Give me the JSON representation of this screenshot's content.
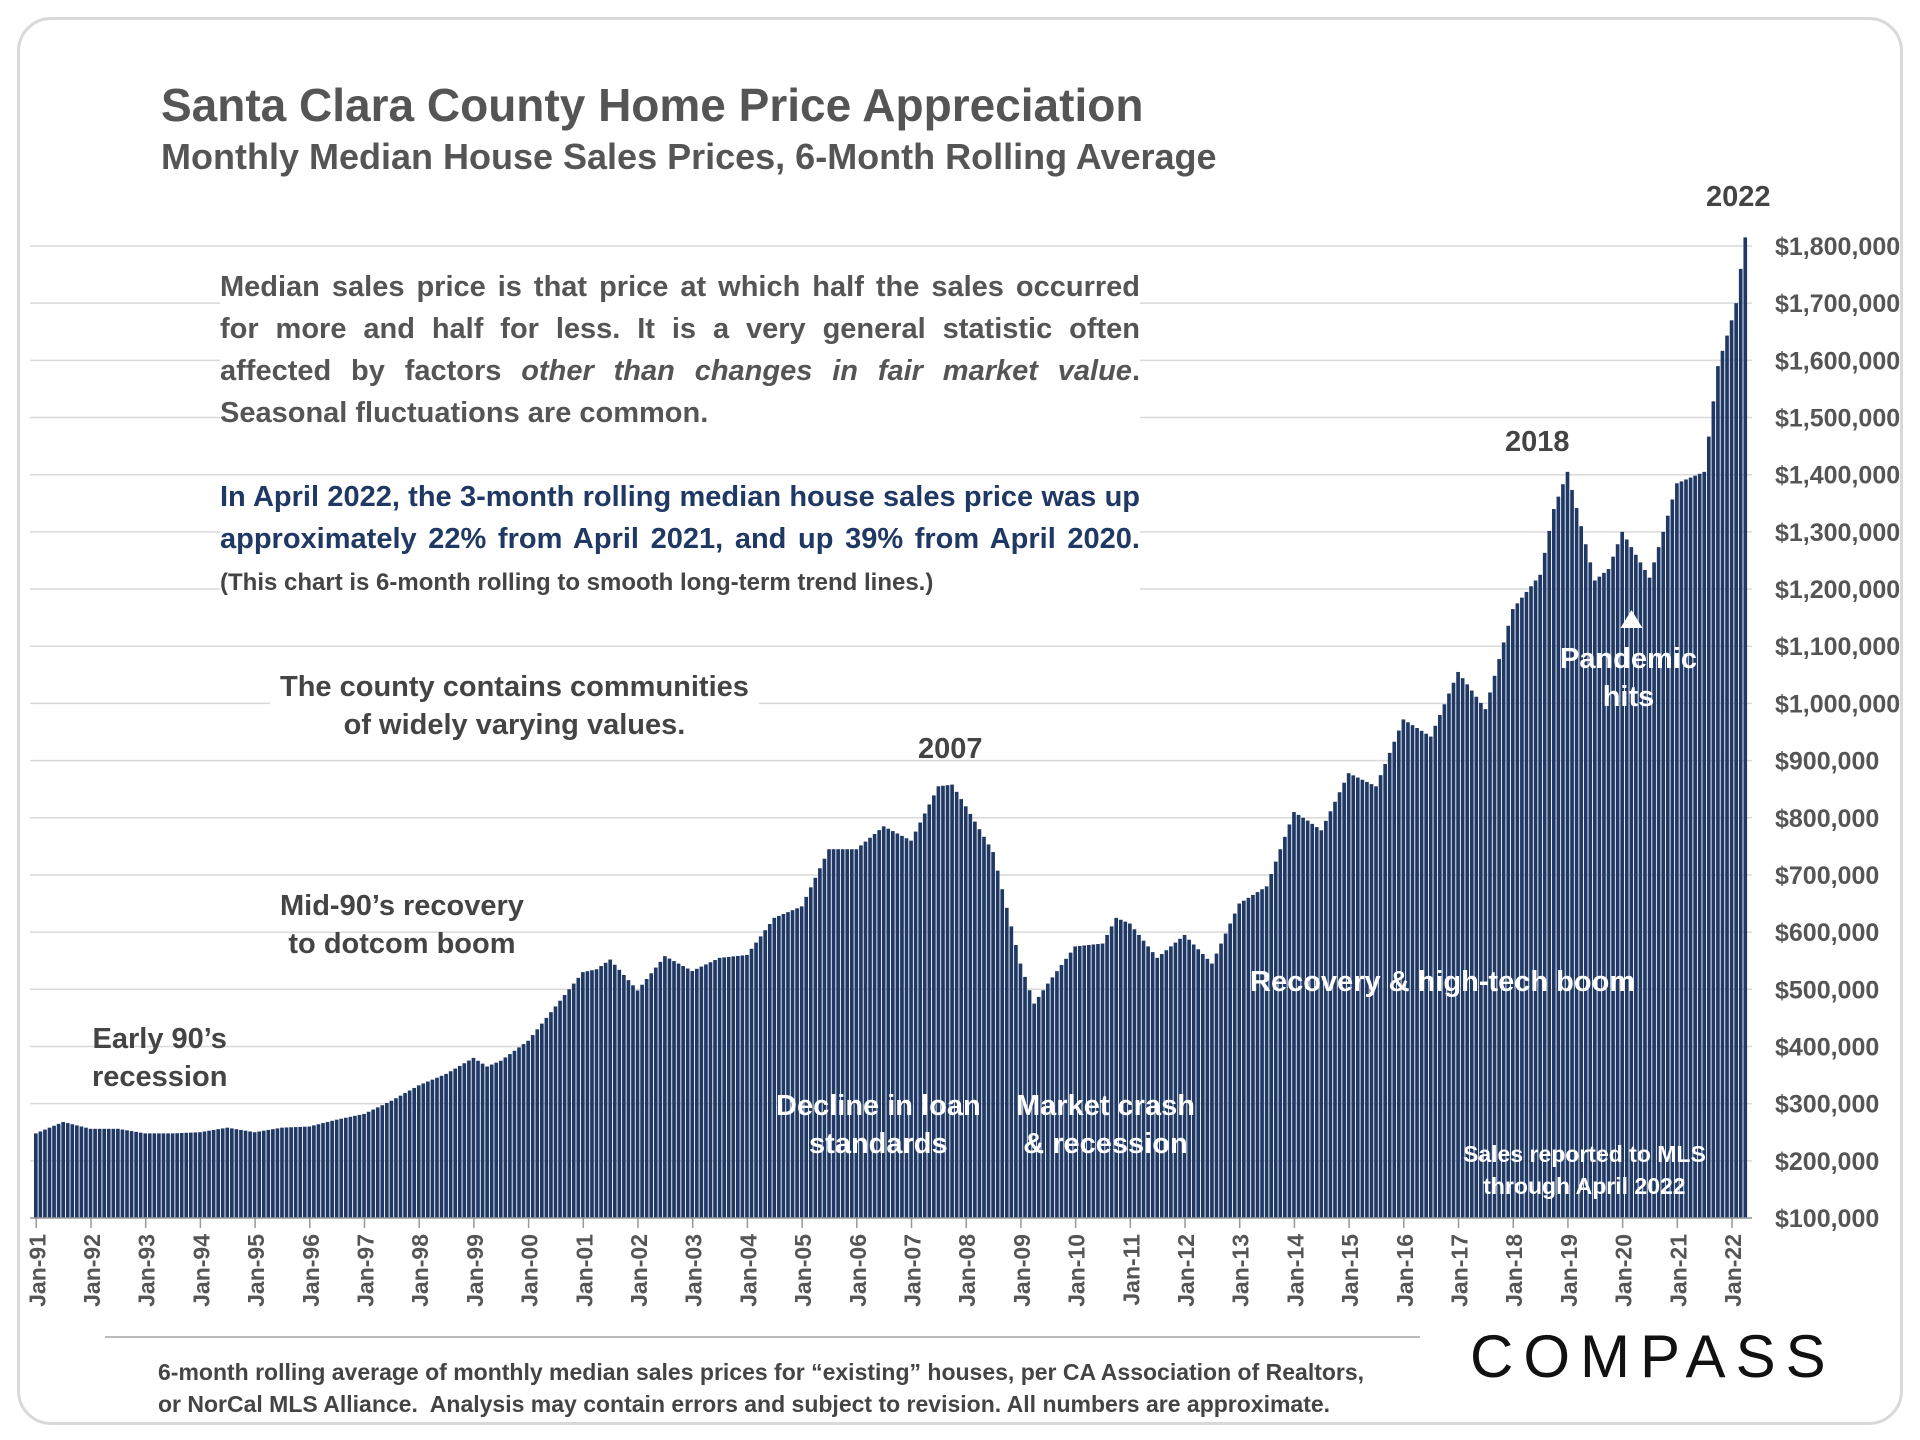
{
  "title": "Santa Clara County Home Price Appreciation",
  "subtitle": "Monthly Median House Sales Prices, 6-Month Rolling Average",
  "text_block_1": {
    "line_a": "Median sales price is that price at which half the sales occurred for more and half for less. It is a very general statistic often affected by factors ",
    "emphasis": "other than changes in fair market value",
    "line_b": ". Seasonal fluctuations are common."
  },
  "text_block_2": {
    "main": "In April 2022, the 3-month rolling median house sales price was up approximately 22% from April 2021, and up 39% from April 2020. ",
    "note": "(This chart is 6-month rolling to smooth long-term trend lines.)"
  },
  "annotations": {
    "county": "The county contains communities\nof widely varying values.",
    "early90s": "Early 90’s\nrecession",
    "mid90s": "Mid-90’s recovery\nto dotcom boom",
    "peak2007": "2007",
    "peak2018": "2018",
    "peak2022": "2022",
    "decline": "Decline in loan\nstandards",
    "crash": "Market crash\n& recession",
    "recovery": "Recovery & high-tech boom",
    "pandemic": "Pandemic\nhits",
    "sales_reported": "Sales reported to MLS\nthrough April 2022"
  },
  "footnote": "6-month rolling average of monthly median sales prices for “existing” houses, per CA Association of Realtors,\nor NorCal MLS Alliance.  Analysis may contain errors and subject to revision. All numbers are approximate.",
  "logo": "COMPASS",
  "colors": {
    "bar": "#1f3864",
    "grid": "#d9d9d9",
    "text": "#555555"
  },
  "chart_data": {
    "type": "bar",
    "title": "Santa Clara County Home Price Appreciation",
    "subtitle": "Monthly Median House Sales Prices, 6-Month Rolling Average",
    "xlabel": "",
    "ylabel": "",
    "ylim": [
      100000,
      1800000
    ],
    "y_ticks": [
      100000,
      200000,
      300000,
      400000,
      500000,
      600000,
      700000,
      800000,
      900000,
      1000000,
      1100000,
      1200000,
      1300000,
      1400000,
      1500000,
      1600000,
      1700000,
      1800000
    ],
    "y_tick_labels": [
      "$100,000",
      "$200,000",
      "$300,000",
      "$400,000",
      "$500,000",
      "$600,000",
      "$700,000",
      "$800,000",
      "$900,000",
      "$1,000,000",
      "$1,100,000",
      "$1,200,000",
      "$1,300,000",
      "$1,400,000",
      "$1,500,000",
      "$1,600,000",
      "$1,700,000",
      "$1,800,000"
    ],
    "x_tick_labels": [
      "Jan-91",
      "Jan-92",
      "Jan-93",
      "Jan-94",
      "Jan-95",
      "Jan-96",
      "Jan-97",
      "Jan-98",
      "Jan-99",
      "Jan-00",
      "Jan-01",
      "Jan-02",
      "Jan-03",
      "Jan-04",
      "Jan-05",
      "Jan-06",
      "Jan-07",
      "Jan-08",
      "Jan-09",
      "Jan-10",
      "Jan-11",
      "Jan-12",
      "Jan-13",
      "Jan-14",
      "Jan-15",
      "Jan-16",
      "Jan-17",
      "Jan-18",
      "Jan-19",
      "Jan-20",
      "Jan-21",
      "Jan-22"
    ],
    "start": "Jan-91",
    "end": "Apr-22",
    "frequency": "monthly",
    "series_anchor_points": [
      [
        "Jan-91",
        248000
      ],
      [
        "Jul-91",
        268000
      ],
      [
        "Jan-92",
        256000
      ],
      [
        "Jul-92",
        256000
      ],
      [
        "Jan-93",
        248000
      ],
      [
        "Jul-93",
        248000
      ],
      [
        "Jan-94",
        250000
      ],
      [
        "Jul-94",
        258000
      ],
      [
        "Jan-95",
        250000
      ],
      [
        "Jul-95",
        258000
      ],
      [
        "Jan-96",
        260000
      ],
      [
        "Jul-96",
        272000
      ],
      [
        "Jan-97",
        282000
      ],
      [
        "Jul-97",
        305000
      ],
      [
        "Jan-98",
        332000
      ],
      [
        "Jul-98",
        352000
      ],
      [
        "Jan-99",
        380000
      ],
      [
        "Apr-99",
        365000
      ],
      [
        "Jul-99",
        375000
      ],
      [
        "Jan-00",
        410000
      ],
      [
        "Jul-00",
        470000
      ],
      [
        "Jan-01",
        530000
      ],
      [
        "Apr-01",
        535000
      ],
      [
        "Jul-01",
        552000
      ],
      [
        "Jan-02",
        498000
      ],
      [
        "Jul-02",
        558000
      ],
      [
        "Jan-03",
        532000
      ],
      [
        "Jul-03",
        555000
      ],
      [
        "Jan-04",
        560000
      ],
      [
        "Jul-04",
        625000
      ],
      [
        "Jan-05",
        645000
      ],
      [
        "Jul-05",
        745000
      ],
      [
        "Jan-06",
        745000
      ],
      [
        "Jul-06",
        785000
      ],
      [
        "Jan-07",
        760000
      ],
      [
        "Jul-07",
        855000
      ],
      [
        "Oct-07",
        858000
      ],
      [
        "Jan-08",
        820000
      ],
      [
        "Jul-08",
        740000
      ],
      [
        "Jan-09",
        545000
      ],
      [
        "Apr-09",
        475000
      ],
      [
        "Jul-09",
        510000
      ],
      [
        "Jan-10",
        575000
      ],
      [
        "Jul-10",
        580000
      ],
      [
        "Oct-10",
        625000
      ],
      [
        "Jan-11",
        615000
      ],
      [
        "Jul-11",
        555000
      ],
      [
        "Jan-12",
        595000
      ],
      [
        "Jul-12",
        545000
      ],
      [
        "Jan-13",
        650000
      ],
      [
        "Jul-13",
        680000
      ],
      [
        "Jan-14",
        810000
      ],
      [
        "Apr-14",
        795000
      ],
      [
        "Jul-14",
        778000
      ],
      [
        "Jan-15",
        878000
      ],
      [
        "Jul-15",
        855000
      ],
      [
        "Jan-16",
        972000
      ],
      [
        "Jul-16",
        942000
      ],
      [
        "Jan-17",
        1055000
      ],
      [
        "Jul-17",
        990000
      ],
      [
        "Jan-18",
        1165000
      ],
      [
        "Jul-18",
        1225000
      ],
      [
        "Oct-18",
        1340000
      ],
      [
        "Jan-19",
        1405000
      ],
      [
        "Jul-19",
        1215000
      ],
      [
        "Oct-19",
        1235000
      ],
      [
        "Jan-20",
        1300000
      ],
      [
        "Jul-20",
        1220000
      ],
      [
        "Oct-20",
        1300000
      ],
      [
        "Jan-21",
        1385000
      ],
      [
        "Jul-21",
        1405000
      ],
      [
        "Oct-21",
        1590000
      ],
      [
        "Jan-22",
        1670000
      ],
      [
        "Feb-22",
        1700000
      ],
      [
        "Mar-22",
        1760000
      ],
      [
        "Apr-22",
        1815000
      ]
    ]
  }
}
